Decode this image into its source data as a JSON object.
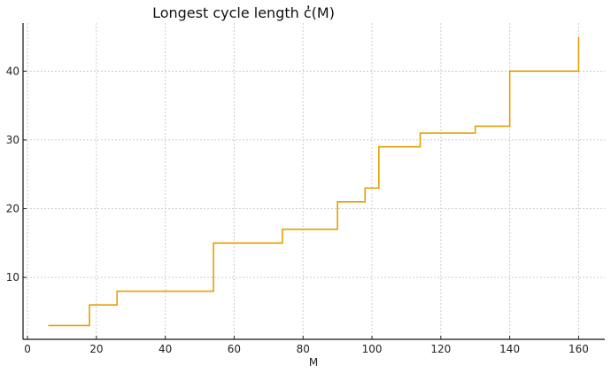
{
  "chart_data": {
    "type": "line",
    "style": "step",
    "title": "Longest cycle length c̓(M)",
    "xlabel": "M",
    "ylabel": "",
    "xlim": [
      -1.3,
      167.6
    ],
    "ylim": [
      1,
      47
    ],
    "xticks": [
      0,
      20,
      40,
      60,
      80,
      100,
      120,
      140,
      160
    ],
    "yticks": [
      10,
      20,
      30,
      40
    ],
    "grid": true,
    "color": "#E69F00",
    "x": [
      6,
      18,
      26,
      54,
      74,
      90,
      98,
      102,
      114,
      130,
      140,
      160
    ],
    "y": [
      3,
      6,
      8,
      15,
      17,
      21,
      23,
      29,
      31,
      32,
      40,
      45
    ]
  }
}
